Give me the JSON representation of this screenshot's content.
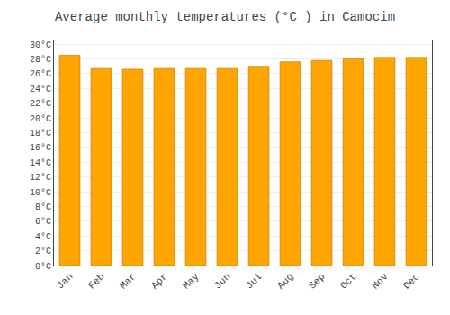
{
  "chart_data": {
    "type": "bar",
    "title": "Average monthly temperatures (°C ) in Camocim",
    "categories": [
      "Jan",
      "Feb",
      "Mar",
      "Apr",
      "May",
      "Jun",
      "Jul",
      "Aug",
      "Sep",
      "Oct",
      "Nov",
      "Dec"
    ],
    "values": [
      28.5,
      26.7,
      26.6,
      26.7,
      26.7,
      26.7,
      27.0,
      27.6,
      27.8,
      28.0,
      28.2,
      28.2
    ],
    "color": "#FFA500",
    "ylim": [
      0,
      30.5
    ],
    "yticks": [
      {
        "value": 0,
        "label": "0°C"
      },
      {
        "value": 2,
        "label": "2°C"
      },
      {
        "value": 4,
        "label": "4°C"
      },
      {
        "value": 6,
        "label": "6°C"
      },
      {
        "value": 8,
        "label": "8°C"
      },
      {
        "value": 10,
        "label": "10°C"
      },
      {
        "value": 12,
        "label": "12°C"
      },
      {
        "value": 14,
        "label": "14°C"
      },
      {
        "value": 16,
        "label": "16°C"
      },
      {
        "value": 18,
        "label": "18°C"
      },
      {
        "value": 20,
        "label": "20°C"
      },
      {
        "value": 22,
        "label": "22°C"
      },
      {
        "value": 24,
        "label": "24°C"
      },
      {
        "value": 26,
        "label": "26°C"
      },
      {
        "value": 28,
        "label": "28°C"
      },
      {
        "value": 30,
        "label": "30°C"
      }
    ],
    "grid": true
  }
}
